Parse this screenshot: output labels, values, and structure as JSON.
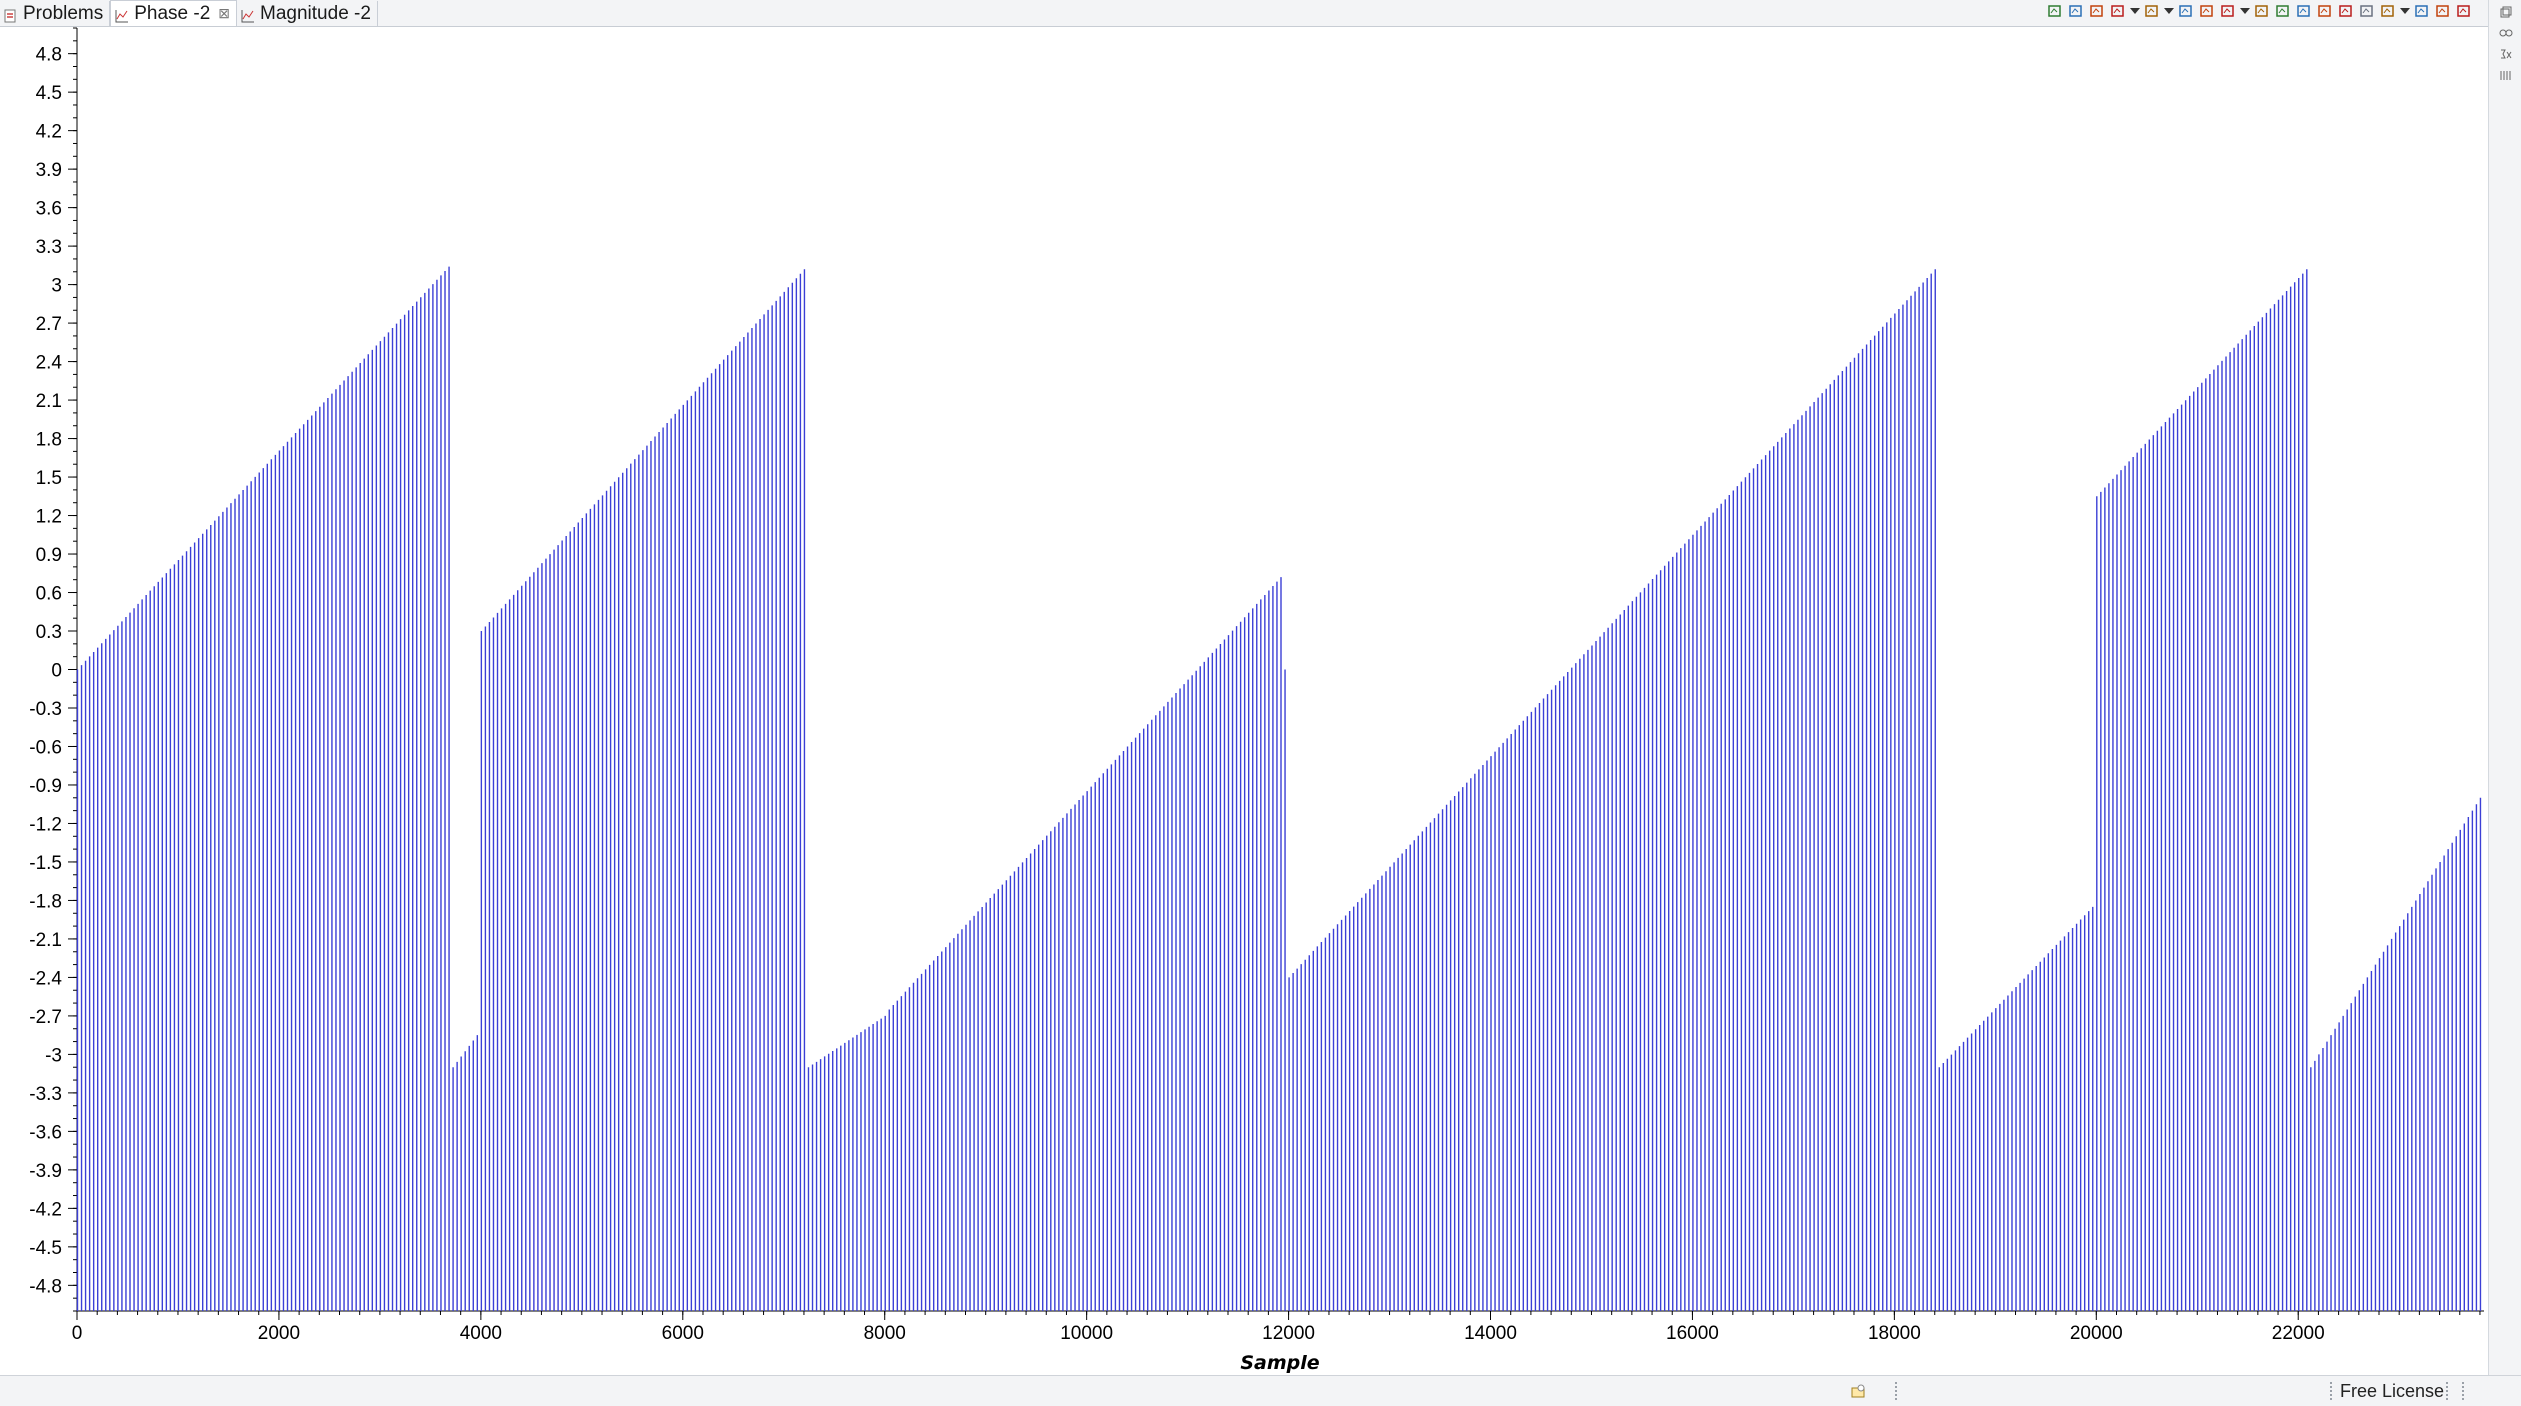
{
  "tabs": [
    {
      "label": "Problems",
      "icon": "problems-icon",
      "active": false
    },
    {
      "label": "Phase -2",
      "icon": "graph-icon",
      "active": true,
      "close": "⊠"
    },
    {
      "label": "Magnitude -2",
      "icon": "graph-icon",
      "active": false
    }
  ],
  "toolbar": {
    "icons": [
      "graph-props-icon",
      "add-marker-icon",
      "remove-marker-icon",
      "zoom-icon",
      "dropdown-icon",
      "refresh-icon",
      "dropdown-icon",
      "zoom-in-icon",
      "zoom-out-icon",
      "zoom-fit-icon",
      "dropdown-icon",
      "export-icon",
      "import-icon",
      "reset-icon",
      "delete-icon",
      "data-icon",
      "pin-icon",
      "display-props-icon",
      "dropdown-icon",
      "snapshot-icon",
      "minimize-icon",
      "maximize-icon"
    ]
  },
  "colors": {
    "series": "#3b3fd6",
    "axis": "#000000",
    "tabbar": "#f3f4f6"
  },
  "chart_data": {
    "type": "bar",
    "title": "",
    "xlabel": "Sample",
    "ylabel": "",
    "xlim": [
      0,
      23840
    ],
    "ylim": [
      -5.0,
      5.0
    ],
    "x_ticks": [
      "0",
      "2000",
      "4000",
      "6000",
      "8000",
      "10000",
      "12000",
      "14000",
      "16000",
      "18000",
      "20000",
      "22000"
    ],
    "y_ticks": [
      "4.8",
      "4.5",
      "4.2",
      "3.9",
      "3.6",
      "3.3",
      "3",
      "2.7",
      "2.4",
      "2.1",
      "1.8",
      "1.5",
      "1.2",
      "0.9",
      "0.6",
      "0.3",
      "0",
      "-0.3",
      "-0.6",
      "-0.9",
      "-1.2",
      "-1.5",
      "-1.8",
      "-2.1",
      "-2.4",
      "-2.7",
      "-3",
      "-3.3",
      "-3.6",
      "-3.9",
      "-4.2",
      "-4.5",
      "-4.8"
    ],
    "baseline": -5.0,
    "sample_step": 40,
    "series": [
      {
        "segments": [
          {
            "x": [
              0,
              3680
            ],
            "y": [
              0.0,
              3.14
            ]
          },
          {
            "x": [
              3720,
              3960
            ],
            "y": [
              -3.1,
              -2.85
            ]
          },
          {
            "x": [
              4000,
              7200
            ],
            "y": [
              0.3,
              3.12
            ]
          },
          {
            "x": [
              7240,
              8000
            ],
            "y": [
              -3.1,
              -2.7
            ]
          },
          {
            "x": [
              8040,
              11920
            ],
            "y": [
              -2.65,
              0.72
            ]
          },
          {
            "x": [
              11960,
              11960
            ],
            "y": [
              0.0,
              0.0
            ]
          },
          {
            "x": [
              12000,
              18400
            ],
            "y": [
              -2.4,
              3.12
            ]
          },
          {
            "x": [
              18440,
              19960
            ],
            "y": [
              -3.1,
              -1.85
            ]
          },
          {
            "x": [
              20000,
              22080
            ],
            "y": [
              1.35,
              3.12
            ]
          },
          {
            "x": [
              22120,
              23800
            ],
            "y": [
              -3.1,
              -1.0
            ]
          }
        ]
      }
    ]
  },
  "status": {
    "license": "Free License"
  }
}
